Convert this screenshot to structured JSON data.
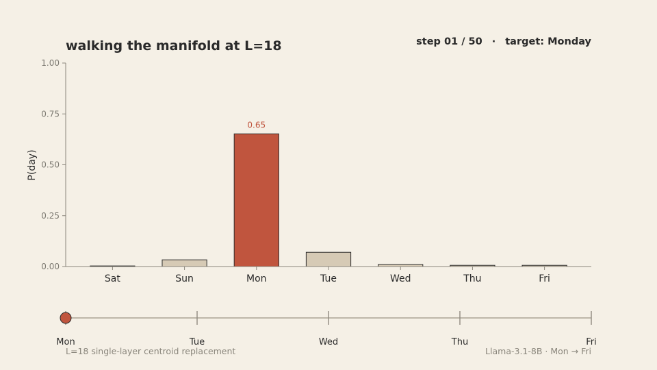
{
  "title": "walking the manifold at L=18",
  "status": {
    "step_text": "step 01 / 50",
    "separator": "·",
    "target_text": "target: Monday"
  },
  "chart_data": {
    "type": "bar",
    "categories": [
      "Sat",
      "Sun",
      "Mon",
      "Tue",
      "Wed",
      "Thu",
      "Fri"
    ],
    "values": [
      0.003,
      0.033,
      0.652,
      0.07,
      0.01,
      0.006,
      0.006
    ],
    "highlight": "Mon",
    "highlight_label": "0.65",
    "xlabel": "",
    "ylabel": "P(day)",
    "ylim": [
      0,
      1
    ],
    "yticks": [
      "0.00",
      "0.25",
      "0.50",
      "0.75",
      "1.00"
    ],
    "grid": false
  },
  "timeline": {
    "labels": [
      "Mon",
      "Tue",
      "Wed",
      "Thu",
      "Fri"
    ],
    "position": 0.0
  },
  "footer": {
    "left": "L=18 single-layer centroid replacement",
    "right": "Llama-3.1-8B  ·  Mon → Fri"
  },
  "colors": {
    "background": "#f5f0e6",
    "bar": "#d6cab5",
    "highlight": "#c0553e",
    "bar_edge": "#2a2a2a",
    "axis": "#8a867c",
    "track": "#bdb6a8",
    "text": "#2a2a2a"
  }
}
